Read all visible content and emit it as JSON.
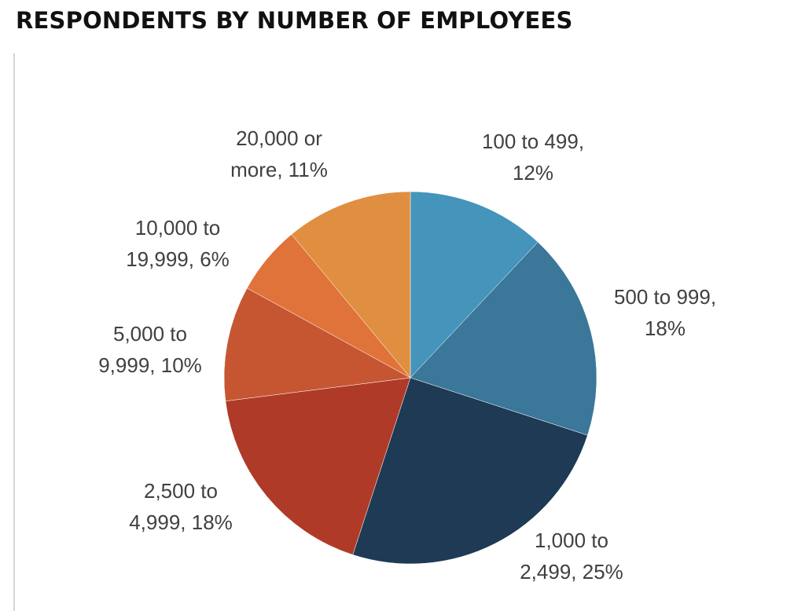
{
  "chart_data": {
    "type": "pie",
    "title": "RESPONDENTS BY NUMBER OF EMPLOYEES",
    "start_angle": "12 o'clock",
    "direction": "clockwise",
    "slices": [
      {
        "category": "100 to 499",
        "value": 12,
        "label_lines": [
          "100 to 499,",
          "12%"
        ],
        "color": "#4494BC"
      },
      {
        "category": "500 to 999",
        "value": 18,
        "label_lines": [
          "500 to 999,",
          "18%"
        ],
        "color": "#3A7799"
      },
      {
        "category": "1,000 to 2,499",
        "value": 25,
        "label_lines": [
          "1,000 to",
          "2,499, 25%"
        ],
        "color": "#1E3A55"
      },
      {
        "category": "2,500 to 4,999",
        "value": 18,
        "label_lines": [
          "2,500 to",
          "4,999, 18%"
        ],
        "color": "#AF3A28"
      },
      {
        "category": "5,000 to 9,999",
        "value": 10,
        "label_lines": [
          "5,000 to",
          "9,999, 10%"
        ],
        "color": "#C65631"
      },
      {
        "category": "10,000 to 19,999",
        "value": 6,
        "label_lines": [
          "10,000 to",
          "19,999, 6%"
        ],
        "color": "#E07339"
      },
      {
        "category": "20,000 or more",
        "value": 11,
        "label_lines": [
          "20,000 or",
          "more, 11%"
        ],
        "color": "#E08F40"
      }
    ]
  }
}
